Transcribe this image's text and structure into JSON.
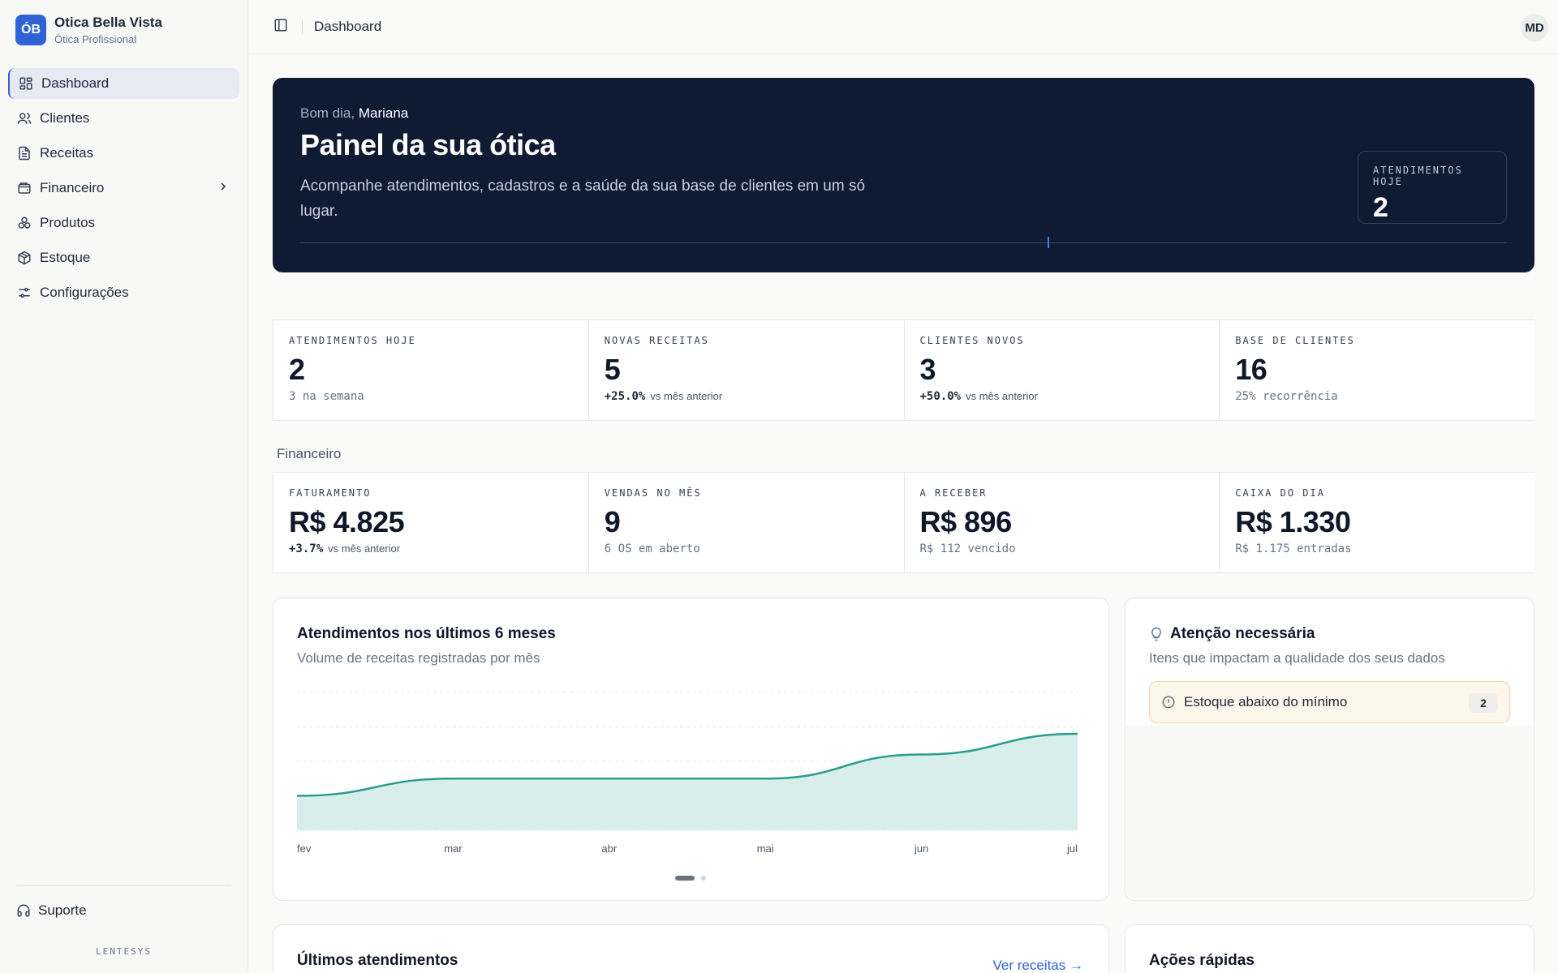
{
  "brand": {
    "logo_initials": "ÓB",
    "name": "Otica Bella Vista",
    "subtitle": "Ótica Profissional"
  },
  "sidebar": {
    "items": [
      {
        "label": "Dashboard",
        "icon": "layout-dashboard-icon",
        "active": true
      },
      {
        "label": "Clientes",
        "icon": "users-icon"
      },
      {
        "label": "Receitas",
        "icon": "file-text-icon"
      },
      {
        "label": "Financeiro",
        "icon": "wallet-icon",
        "has_submenu": true
      },
      {
        "label": "Produtos",
        "icon": "glasses-icon"
      },
      {
        "label": "Estoque",
        "icon": "package-icon"
      },
      {
        "label": "Configurações",
        "icon": "sliders-icon"
      }
    ],
    "support_label": "Suporte",
    "product_name": "LENTESYS"
  },
  "topbar": {
    "breadcrumb": "Dashboard",
    "avatar_initials": "MD"
  },
  "hero": {
    "greeting_prefix": "Bom dia,",
    "user_name": "Mariana",
    "title": "Painel da sua ótica",
    "description": "Acompanhe atendimentos, cadastros e a saúde da sua base de clientes em um só lugar.",
    "stat_label": "ATENDIMENTOS HOJE",
    "stat_value": "2"
  },
  "kpis": [
    {
      "label": "ATENDIMENTOS HOJE",
      "value": "2",
      "sub": "3 na semana"
    },
    {
      "label": "NOVAS RECEITAS",
      "value": "5",
      "delta": "+25.0%",
      "note": "vs mês anterior"
    },
    {
      "label": "CLIENTES NOVOS",
      "value": "3",
      "delta": "+50.0%",
      "note": "vs mês anterior"
    },
    {
      "label": "BASE DE CLIENTES",
      "value": "16",
      "sub": "25% recorrência"
    }
  ],
  "finance": {
    "section_label": "Financeiro",
    "kpis": [
      {
        "label": "FATURAMENTO",
        "value": "R$ 4.825",
        "delta": "+3.7%",
        "note": "vs mês anterior"
      },
      {
        "label": "VENDAS NO MÊS",
        "value": "9",
        "sub": "6 OS em aberto"
      },
      {
        "label": "A RECEBER",
        "value": "R$ 896",
        "sub": "R$ 112 vencido"
      },
      {
        "label": "CAIXA DO DIA",
        "value": "R$ 1.330",
        "sub": "R$ 1.175 entradas"
      }
    ]
  },
  "chart_card": {
    "title": "Atendimentos nos últimos 6 meses",
    "subtitle": "Volume de receitas registradas por mês"
  },
  "chart_data": {
    "type": "area",
    "categories": [
      "fev",
      "mar",
      "abr",
      "mai",
      "jun",
      "jul"
    ],
    "series": [
      {
        "values": [
          1,
          1.5,
          1.5,
          1.5,
          2.2,
          2.8
        ]
      }
    ],
    "ylim": [
      0,
      4
    ],
    "grid": true,
    "color": "#2a9d8f",
    "fill": "#d8eeea"
  },
  "attention": {
    "title": "Atenção necessária",
    "subtitle": "Itens que impactam a qualidade dos seus dados",
    "items": [
      {
        "label": "Estoque abaixo do mínimo",
        "count": "2"
      }
    ]
  },
  "recent": {
    "title": "Últimos atendimentos",
    "link_label": "Ver receitas"
  },
  "quick_actions": {
    "title": "Ações rápidas"
  }
}
